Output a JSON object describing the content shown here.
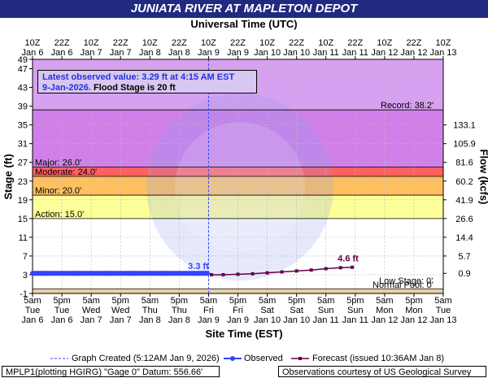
{
  "title": "JUNIATA RIVER AT MAPLETON DEPOT",
  "top_axis_title": "Universal Time (UTC)",
  "bottom_axis_title": "Site Time (EST)",
  "left_axis_title": "Stage (ft)",
  "right_axis_title": "Flow (kcfs)",
  "latest_observed": {
    "line1": "Latest observed value: 3.29 ft at 4:15 AM EST",
    "line2_date": "9-Jan-2026.",
    "line2_flood": " Flood Stage is 20 ft"
  },
  "legend": {
    "graph_created": "Graph Created (5:12AM Jan 9, 2026)",
    "observed": "Observed",
    "forecast": "Forecast (issued 10:36AM Jan 8)"
  },
  "footer": {
    "left": "MPLP1(plotting HGIRG) \"Gage 0\" Datum: 556.66'",
    "right": "Observations courtesy of US Geological Survey"
  },
  "colors": {
    "record_zone": "#d8a0f0",
    "major_zone": "#d080e8",
    "moderate_zone": "#ff6060",
    "minor_zone": "#ffc060",
    "action_zone": "#ffff99",
    "normal_zone": "#e8d0a8",
    "observed": "#3344ff",
    "forecast": "#660044",
    "title_bar": "#1f2a80"
  },
  "chart_data": {
    "type": "line",
    "title": "JUNIATA RIVER AT MAPLETON DEPOT",
    "xlabel": "Site Time (EST)",
    "ylabel": "Stage (ft)",
    "y2label": "Flow (kcfs)",
    "ylim": [
      -1,
      49
    ],
    "y_ticks": [
      -1,
      3,
      7,
      11,
      15,
      19,
      23,
      27,
      31,
      35,
      39,
      43,
      47,
      49
    ],
    "flow_ticks": [
      {
        "stage": 3.3,
        "label": "0.9"
      },
      {
        "stage": 7,
        "label": "5.7"
      },
      {
        "stage": 11,
        "label": "14.4"
      },
      {
        "stage": 15,
        "label": "26.6"
      },
      {
        "stage": 19,
        "label": "41.9"
      },
      {
        "stage": 23,
        "label": "60.2"
      },
      {
        "stage": 27,
        "label": "81.6"
      },
      {
        "stage": 31,
        "label": "105.9"
      },
      {
        "stage": 35,
        "label": "133.1"
      }
    ],
    "x_ticks_bottom": [
      {
        "l1": "5am",
        "l2": "Tue",
        "l3": "Jan 6"
      },
      {
        "l1": "5pm",
        "l2": "Tue",
        "l3": "Jan 6"
      },
      {
        "l1": "5am",
        "l2": "Wed",
        "l3": "Jan 7"
      },
      {
        "l1": "5pm",
        "l2": "Wed",
        "l3": "Jan 7"
      },
      {
        "l1": "5am",
        "l2": "Thu",
        "l3": "Jan 8"
      },
      {
        "l1": "5pm",
        "l2": "Thu",
        "l3": "Jan 8"
      },
      {
        "l1": "5am",
        "l2": "Fri",
        "l3": "Jan 9"
      },
      {
        "l1": "5pm",
        "l2": "Fri",
        "l3": "Jan 9"
      },
      {
        "l1": "5am",
        "l2": "Sat",
        "l3": "Jan 10"
      },
      {
        "l1": "5pm",
        "l2": "Sat",
        "l3": "Jan 10"
      },
      {
        "l1": "5am",
        "l2": "Sun",
        "l3": "Jan 11"
      },
      {
        "l1": "5pm",
        "l2": "Sun",
        "l3": "Jan 11"
      },
      {
        "l1": "5am",
        "l2": "Mon",
        "l3": "Jan 12"
      },
      {
        "l1": "5pm",
        "l2": "Mon",
        "l3": "Jan 12"
      },
      {
        "l1": "5am",
        "l2": "Tue",
        "l3": "Jan 13"
      }
    ],
    "x_ticks_top": [
      {
        "l1": "10Z",
        "l2": "Jan 6"
      },
      {
        "l1": "22Z",
        "l2": "Jan 6"
      },
      {
        "l1": "10Z",
        "l2": "Jan 7"
      },
      {
        "l1": "22Z",
        "l2": "Jan 7"
      },
      {
        "l1": "10Z",
        "l2": "Jan 8"
      },
      {
        "l1": "22Z",
        "l2": "Jan 8"
      },
      {
        "l1": "10Z",
        "l2": "Jan 9"
      },
      {
        "l1": "22Z",
        "l2": "Jan 9"
      },
      {
        "l1": "10Z",
        "l2": "Jan 10"
      },
      {
        "l1": "22Z",
        "l2": "Jan 10"
      },
      {
        "l1": "10Z",
        "l2": "Jan 11"
      },
      {
        "l1": "22Z",
        "l2": "Jan 11"
      },
      {
        "l1": "10Z",
        "l2": "Jan 12"
      },
      {
        "l1": "22Z",
        "l2": "Jan 12"
      },
      {
        "l1": "10Z",
        "l2": "Jan 13"
      }
    ],
    "thresholds": [
      {
        "name": "Record",
        "label": "Record: 38.2'",
        "stage": 38.2
      },
      {
        "name": "Major",
        "label": "Major: 26.0'",
        "stage": 26.0
      },
      {
        "name": "Moderate",
        "label": "Moderate: 24.0'",
        "stage": 24.0
      },
      {
        "name": "Minor",
        "label": "Minor: 20.0'",
        "stage": 20.0
      },
      {
        "name": "Action",
        "label": "Action: 15.0'",
        "stage": 15.0
      },
      {
        "name": "Low",
        "label": "Low Stage: 0'",
        "stage": 0
      },
      {
        "name": "Normal",
        "label": "Normal Pool: 0'",
        "stage": 0
      }
    ],
    "graph_created_x": 6.0,
    "observed": {
      "name": "Observed",
      "x": [
        0,
        0.5,
        1,
        1.5,
        2,
        2.5,
        3,
        3.5,
        4,
        4.5,
        5,
        5.5,
        5.96
      ],
      "y": [
        3.3,
        3.3,
        3.3,
        3.3,
        3.3,
        3.3,
        3.3,
        3.3,
        3.3,
        3.3,
        3.3,
        3.3,
        3.29
      ],
      "annotation": "3.3 ft"
    },
    "forecast": {
      "name": "Forecast",
      "x": [
        6.1,
        6.5,
        7.0,
        7.5,
        8.0,
        8.5,
        9.0,
        9.5,
        10.0,
        10.5,
        10.9
      ],
      "y": [
        3.0,
        3.0,
        3.1,
        3.2,
        3.4,
        3.6,
        3.8,
        4.0,
        4.3,
        4.5,
        4.6
      ],
      "annotation": "4.6 ft"
    }
  }
}
